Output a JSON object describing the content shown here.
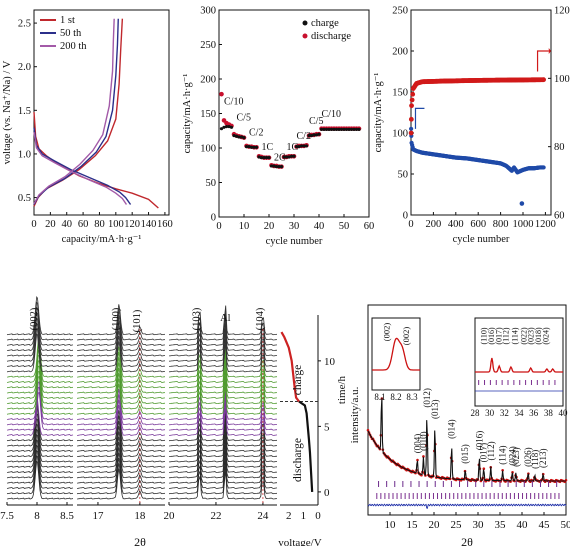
{
  "colors": {
    "cycle1": "#c0282d",
    "cycle50": "#2b2f8a",
    "cycle200": "#a35aa8",
    "charge": "#111111",
    "discharge": "#c8102e",
    "capacity_series": "#1f4aa8",
    "efficiency_series": "#d11a1a",
    "xrd_fit": "#cc1111",
    "xrd_obs": "#111111",
    "xrd_diff": "#2233aa",
    "xrd_ticks": "#7a2e8e",
    "charge_curve": "#cc2222",
    "discharge_curve": "#111111",
    "line_tint_charge": "#4f9a2f",
    "line_tint_discharge": "#7a3a9a"
  },
  "chart_data": [
    {
      "id": "a",
      "type": "line",
      "xlabel": "capacity/mA·h·g⁻¹",
      "ylabel": "voltage (vs. Na⁺/Na) / V",
      "xlim": [
        0,
        165
      ],
      "ylim": [
        0.3,
        2.65
      ],
      "xticks": [
        0,
        20,
        40,
        60,
        80,
        100,
        120,
        140,
        160
      ],
      "yticks": [
        0.5,
        1.0,
        1.5,
        2.0,
        2.5
      ],
      "ytick_labels": [
        "0.5",
        "1.0",
        "1.5",
        "2.0",
        "2.5"
      ],
      "legend": [
        "1 st",
        "50 th",
        "200 th"
      ],
      "series": [
        {
          "name": "1 st",
          "color_key": "cycle1",
          "discharge": [
            [
              0,
              1.48
            ],
            [
              2,
              1.2
            ],
            [
              6,
              1.06
            ],
            [
              15,
              0.98
            ],
            [
              30,
              0.88
            ],
            [
              55,
              0.75
            ],
            [
              80,
              0.66
            ],
            [
              100,
              0.6
            ],
            [
              120,
              0.55
            ],
            [
              140,
              0.48
            ],
            [
              152,
              0.38
            ]
          ],
          "charge": [
            [
              0,
              0.4
            ],
            [
              5,
              0.5
            ],
            [
              15,
              0.6
            ],
            [
              35,
              0.7
            ],
            [
              55,
              0.82
            ],
            [
              75,
              0.98
            ],
            [
              90,
              1.15
            ],
            [
              100,
              1.4
            ],
            [
              104,
              1.8
            ],
            [
              106,
              2.2
            ],
            [
              108,
              2.55
            ]
          ]
        },
        {
          "name": "50 th",
          "color_key": "cycle50",
          "discharge": [
            [
              0,
              1.3
            ],
            [
              3,
              1.1
            ],
            [
              10,
              1.0
            ],
            [
              25,
              0.92
            ],
            [
              45,
              0.82
            ],
            [
              70,
              0.72
            ],
            [
              90,
              0.64
            ],
            [
              105,
              0.56
            ],
            [
              112,
              0.5
            ],
            [
              118,
              0.42
            ]
          ],
          "charge": [
            [
              0,
              0.42
            ],
            [
              6,
              0.52
            ],
            [
              18,
              0.62
            ],
            [
              38,
              0.72
            ],
            [
              58,
              0.86
            ],
            [
              76,
              1.02
            ],
            [
              88,
              1.2
            ],
            [
              96,
              1.5
            ],
            [
              100,
              1.9
            ],
            [
              102,
              2.25
            ],
            [
              103,
              2.55
            ]
          ]
        },
        {
          "name": "200 th",
          "color_key": "cycle200",
          "discharge": [
            [
              0,
              1.25
            ],
            [
              3,
              1.07
            ],
            [
              10,
              0.98
            ],
            [
              25,
              0.9
            ],
            [
              45,
              0.8
            ],
            [
              68,
              0.7
            ],
            [
              88,
              0.62
            ],
            [
              100,
              0.55
            ],
            [
              108,
              0.49
            ],
            [
              113,
              0.42
            ]
          ],
          "charge": [
            [
              0,
              0.43
            ],
            [
              6,
              0.53
            ],
            [
              18,
              0.63
            ],
            [
              38,
              0.74
            ],
            [
              56,
              0.88
            ],
            [
              72,
              1.04
            ],
            [
              84,
              1.22
            ],
            [
              92,
              1.55
            ],
            [
              96,
              1.95
            ],
            [
              97,
              2.3
            ],
            [
              98,
              2.55
            ]
          ]
        }
      ]
    },
    {
      "id": "b",
      "type": "scatter",
      "xlabel": "cycle number",
      "ylabel": "capacity/mA·h·g⁻¹",
      "xlim": [
        0,
        60
      ],
      "ylim": [
        0,
        300
      ],
      "xticks": [
        0,
        10,
        20,
        30,
        40,
        50,
        60
      ],
      "yticks": [
        0,
        50,
        100,
        150,
        200,
        250,
        300
      ],
      "legend": [
        "charge",
        "discharge"
      ],
      "rate_labels": [
        {
          "text": "C/10",
          "x": 2,
          "y": 163
        },
        {
          "text": "C/5",
          "x": 7,
          "y": 140
        },
        {
          "text": "C/2",
          "x": 12,
          "y": 118
        },
        {
          "text": "1C",
          "x": 17,
          "y": 97
        },
        {
          "text": "2C",
          "x": 22,
          "y": 82
        },
        {
          "text": "1C",
          "x": 27,
          "y": 97
        },
        {
          "text": "C/2",
          "x": 31,
          "y": 113
        },
        {
          "text": "C/5",
          "x": 36,
          "y": 135
        },
        {
          "text": "C/10",
          "x": 41,
          "y": 145
        }
      ],
      "discharge": [
        [
          1,
          178
        ],
        [
          2,
          140
        ],
        [
          3,
          136
        ],
        [
          4,
          134
        ],
        [
          5,
          132
        ],
        [
          6,
          120
        ],
        [
          7,
          118
        ],
        [
          8,
          117
        ],
        [
          9,
          116
        ],
        [
          10,
          115
        ],
        [
          11,
          103
        ],
        [
          12,
          102
        ],
        [
          13,
          102
        ],
        [
          14,
          101
        ],
        [
          15,
          101
        ],
        [
          16,
          88
        ],
        [
          17,
          87
        ],
        [
          18,
          86
        ],
        [
          19,
          86
        ],
        [
          20,
          86
        ],
        [
          21,
          75
        ],
        [
          22,
          74
        ],
        [
          23,
          74
        ],
        [
          24,
          73
        ],
        [
          25,
          73
        ],
        [
          26,
          87
        ],
        [
          27,
          87
        ],
        [
          28,
          88
        ],
        [
          29,
          88
        ],
        [
          30,
          88
        ],
        [
          31,
          102
        ],
        [
          32,
          103
        ],
        [
          33,
          103
        ],
        [
          34,
          103
        ],
        [
          35,
          104
        ],
        [
          36,
          118
        ],
        [
          37,
          119
        ],
        [
          38,
          119
        ],
        [
          39,
          120
        ],
        [
          40,
          120
        ],
        [
          41,
          128
        ],
        [
          42,
          128
        ],
        [
          43,
          128
        ],
        [
          44,
          128
        ],
        [
          45,
          128
        ],
        [
          46,
          128
        ],
        [
          47,
          128
        ],
        [
          48,
          128
        ],
        [
          49,
          128
        ],
        [
          50,
          128
        ],
        [
          51,
          128
        ],
        [
          52,
          128
        ],
        [
          53,
          128
        ],
        [
          54,
          128
        ],
        [
          55,
          128
        ],
        [
          56,
          128
        ]
      ],
      "charge": [
        [
          1,
          128
        ],
        [
          2,
          130
        ],
        [
          3,
          131
        ],
        [
          4,
          131
        ],
        [
          5,
          130
        ],
        [
          6,
          118
        ],
        [
          7,
          117
        ],
        [
          8,
          116
        ],
        [
          9,
          116
        ],
        [
          10,
          115
        ],
        [
          11,
          102
        ],
        [
          12,
          102
        ],
        [
          13,
          101
        ],
        [
          14,
          101
        ],
        [
          15,
          101
        ],
        [
          16,
          87
        ],
        [
          17,
          86
        ],
        [
          18,
          86
        ],
        [
          19,
          86
        ],
        [
          20,
          86
        ],
        [
          21,
          74
        ],
        [
          22,
          74
        ],
        [
          23,
          73
        ],
        [
          24,
          73
        ],
        [
          25,
          73
        ],
        [
          26,
          87
        ],
        [
          27,
          87
        ],
        [
          28,
          87
        ],
        [
          29,
          88
        ],
        [
          30,
          88
        ],
        [
          31,
          102
        ],
        [
          32,
          102
        ],
        [
          33,
          103
        ],
        [
          34,
          103
        ],
        [
          35,
          103
        ],
        [
          36,
          118
        ],
        [
          37,
          118
        ],
        [
          38,
          119
        ],
        [
          39,
          119
        ],
        [
          40,
          120
        ],
        [
          41,
          127
        ],
        [
          42,
          127
        ],
        [
          43,
          127
        ],
        [
          44,
          127
        ],
        [
          45,
          127
        ],
        [
          46,
          127
        ],
        [
          47,
          127
        ],
        [
          48,
          127
        ],
        [
          49,
          127
        ],
        [
          50,
          127
        ],
        [
          51,
          127
        ],
        [
          52,
          127
        ],
        [
          53,
          127
        ],
        [
          54,
          127
        ],
        [
          55,
          127
        ],
        [
          56,
          127
        ]
      ]
    },
    {
      "id": "c",
      "type": "scatter",
      "xlabel": "cycle number",
      "ylabel": "capacity/mA·h·g⁻¹",
      "xlim": [
        0,
        1250
      ],
      "ylim": [
        0,
        250
      ],
      "y2lim": [
        60,
        120
      ],
      "xticks": [
        0,
        200,
        400,
        600,
        800,
        1000,
        1200
      ],
      "yticks": [
        0,
        50,
        100,
        150,
        200,
        250
      ],
      "y2ticks": [
        60,
        80,
        100,
        120
      ],
      "capacity": [
        [
          1,
          105
        ],
        [
          5,
          88
        ],
        [
          20,
          80
        ],
        [
          50,
          78
        ],
        [
          100,
          76
        ],
        [
          200,
          74
        ],
        [
          300,
          72
        ],
        [
          400,
          70
        ],
        [
          500,
          69
        ],
        [
          600,
          67
        ],
        [
          700,
          65
        ],
        [
          800,
          63
        ],
        [
          850,
          60
        ],
        [
          900,
          54
        ],
        [
          920,
          58
        ],
        [
          950,
          52
        ],
        [
          1000,
          55
        ],
        [
          1050,
          57
        ],
        [
          1100,
          57
        ],
        [
          1150,
          58
        ],
        [
          1190,
          58
        ]
      ],
      "efficiency": [
        [
          1,
          84
        ],
        [
          5,
          92
        ],
        [
          20,
          97
        ],
        [
          50,
          98.5
        ],
        [
          100,
          99
        ],
        [
          300,
          99.2
        ],
        [
          600,
          99.4
        ],
        [
          900,
          99.5
        ],
        [
          1190,
          99.6
        ]
      ]
    },
    {
      "id": "d",
      "type": "line",
      "xlabel": "2θ",
      "panels": [
        {
          "xlim": [
            7.5,
            8.6
          ],
          "xticks": [
            7.5,
            8.0,
            8.5
          ],
          "peak_label": "(002)",
          "peak_x": 8.0
        },
        {
          "xlim": [
            16.5,
            18.6
          ],
          "xticks": [
            17,
            18
          ],
          "peak_label": "(100)",
          "peak_x": 17.5,
          "peak2_label": "(101)",
          "peak2_x": 18.0
        },
        {
          "xlim": [
            20,
            24.6
          ],
          "xticks": [
            20,
            22,
            24
          ],
          "peak_label": "(103)",
          "peak_x": 21.3,
          "peak2_label": "Al",
          "peak2_x": 22.4,
          "peak3_label": "(104)",
          "peak3_x": 24.0
        }
      ],
      "side_plot": {
        "xlabel": "voltage/V",
        "ylabel": "time/h",
        "xticks": [
          2,
          1,
          0
        ],
        "yticks": [
          0,
          5,
          10
        ],
        "xlim": [
          2.6,
          0
        ],
        "ylim": [
          -1,
          13.5
        ],
        "charge_label": "charge",
        "discharge_label": "discharge",
        "discharge": [
          [
            0.4,
            0
          ],
          [
            0.45,
            1
          ],
          [
            0.5,
            2
          ],
          [
            0.55,
            3
          ],
          [
            0.62,
            4
          ],
          [
            0.7,
            5
          ],
          [
            0.78,
            6
          ],
          [
            0.9,
            6.6
          ],
          [
            1.3,
            6.9
          ]
        ],
        "charge": [
          [
            1.3,
            6.9
          ],
          [
            1.5,
            7.2
          ],
          [
            1.6,
            8
          ],
          [
            1.7,
            9
          ],
          [
            1.8,
            10
          ],
          [
            2.0,
            11
          ],
          [
            2.3,
            11.8
          ],
          [
            2.5,
            12.2
          ]
        ]
      }
    },
    {
      "id": "e",
      "type": "scatter",
      "xlabel": "2θ",
      "ylabel": "intensity/a.u.",
      "xlim": [
        5,
        50
      ],
      "xticks": [
        10,
        15,
        20,
        25,
        30,
        35,
        40,
        45,
        50
      ],
      "peaks": [
        {
          "label": "(004)",
          "x": 16.2
        },
        {
          "label": "(010)",
          "x": 17.6
        },
        {
          "label": "(012)",
          "x": 18.4
        },
        {
          "label": "(013)",
          "x": 20.2
        },
        {
          "label": "(014)",
          "x": 24.0
        },
        {
          "label": "(015)",
          "x": 27.1
        },
        {
          "label": "(016)",
          "x": 30.3
        },
        {
          "label": "(017)",
          "x": 31.3
        },
        {
          "label": "(112)",
          "x": 32.9
        },
        {
          "label": "(114)",
          "x": 35.6
        },
        {
          "label": "(024)",
          "x": 37.8
        },
        {
          "label": "(023)",
          "x": 38.6
        },
        {
          "label": "(026)",
          "x": 41.4
        },
        {
          "label": "(118)",
          "x": 42.9
        },
        {
          "label": "(213)",
          "x": 44.8
        }
      ],
      "inset1": {
        "xticks": [
          8.1,
          8.2,
          8.3
        ],
        "xlim": [
          8.05,
          8.35
        ],
        "labels": [
          "(002)",
          "(002)"
        ]
      },
      "inset2": {
        "xticks": [
          28,
          30,
          32,
          34,
          36,
          38,
          40
        ],
        "xlim": [
          28,
          40
        ],
        "labels": [
          "(110)",
          "(016)",
          "(017)",
          "(112)",
          "(114)",
          "(022)",
          "(023)",
          "(018)",
          "(024)"
        ]
      }
    }
  ],
  "panel_a_axis_texts": {
    "xlabel": "capacity/mA·h·g⁻¹",
    "ylabel": "voltage (vs. Na⁺/Na) / V"
  }
}
